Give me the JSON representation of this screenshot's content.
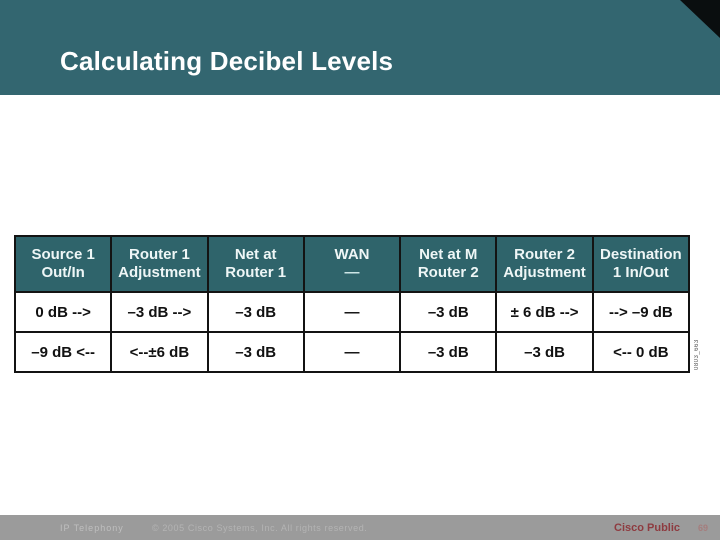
{
  "slide": {
    "title": "Calculating Decibel Levels",
    "figure_id": "0803_663"
  },
  "table": {
    "headers": [
      {
        "line1": "Source 1",
        "line2": "Out/In"
      },
      {
        "line1": "Router 1",
        "line2": "Adjustment"
      },
      {
        "line1": "Net at",
        "line2": "Router 1"
      },
      {
        "line1": "WAN",
        "line2": "—"
      },
      {
        "line1": "Net at M",
        "line2": "Router 2"
      },
      {
        "line1": "Router 2",
        "line2": "Adjustment"
      },
      {
        "line1": "Destination",
        "line2": "1 In/Out"
      }
    ],
    "rows": [
      {
        "cells": [
          "0 dB -->",
          "–3 dB -->",
          "–3 dB",
          "—",
          "–3 dB",
          "± 6 dB -->",
          "--> –9 dB"
        ]
      },
      {
        "cells": [
          "–9 dB <--",
          "<--±6 dB",
          "–3 dB",
          "—",
          "–3 dB",
          "–3 dB",
          "<-- 0 dB"
        ]
      }
    ]
  },
  "footer": {
    "product": "IP Telephony",
    "copyright": "© 2005 Cisco Systems, Inc. All rights reserved.",
    "classification": "Cisco Public",
    "page_number": "69"
  },
  "colors": {
    "header_teal": "#336670",
    "table_header_teal": "#2f646b",
    "corner_black": "#0a0e0f",
    "footer_gray": "#9b9b9b",
    "cisco_red": "#8e3b40"
  }
}
